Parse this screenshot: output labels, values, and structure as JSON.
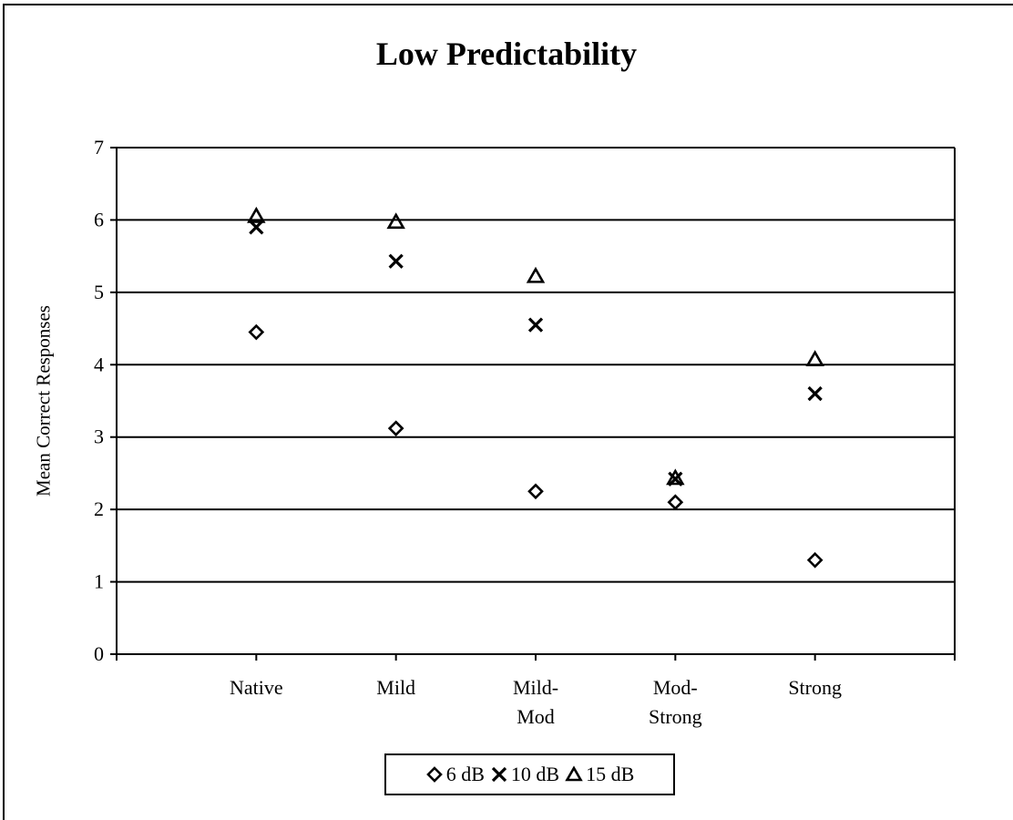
{
  "chart_data": {
    "type": "scatter",
    "title": "Low Predictability",
    "xlabel": "",
    "ylabel": "Mean Correct Responses",
    "ylim": [
      0,
      7
    ],
    "yticks": [
      "0",
      "1",
      "2",
      "3",
      "4",
      "5",
      "6",
      "7"
    ],
    "grid": true,
    "legend_position": "bottom",
    "categories": [
      [
        "Native"
      ],
      [
        "Mild"
      ],
      [
        "Mild-",
        "Mod"
      ],
      [
        "Mod-",
        "Strong"
      ],
      [
        "Strong"
      ]
    ],
    "series": [
      {
        "name": "6 dB",
        "marker": "diamond",
        "values": [
          4.45,
          3.12,
          2.25,
          2.1,
          1.3
        ]
      },
      {
        "name": "10 dB",
        "marker": "cross",
        "values": [
          5.9,
          5.43,
          4.55,
          2.42,
          3.6
        ]
      },
      {
        "name": "15 dB",
        "marker": "triangle",
        "values": [
          6.05,
          5.97,
          5.22,
          2.43,
          4.07
        ]
      }
    ]
  }
}
